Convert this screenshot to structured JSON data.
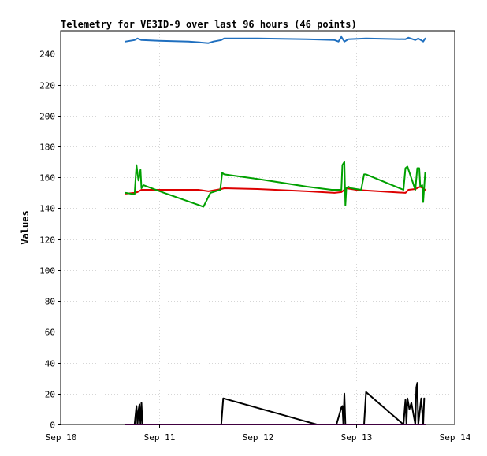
{
  "chart_data": {
    "type": "line",
    "title": "Telemetry for VE3ID-9 over last 96 hours (46 points)",
    "xlabel": "",
    "ylabel": "Values",
    "x_axis": {
      "unit": "days",
      "range": [
        10,
        14
      ],
      "ticks": [
        {
          "value": 10,
          "label": "Sep 10"
        },
        {
          "value": 11,
          "label": "Sep 11"
        },
        {
          "value": 12,
          "label": "Sep 12"
        },
        {
          "value": 13,
          "label": "Sep 13"
        },
        {
          "value": 14,
          "label": "Sep 14"
        }
      ]
    },
    "y_axis": {
      "range": [
        0,
        255
      ],
      "ticks": [
        0,
        20,
        40,
        60,
        80,
        100,
        120,
        140,
        160,
        180,
        200,
        220,
        240
      ]
    },
    "grid": true,
    "legend": "none",
    "series": [
      {
        "color": "#1f6fbf",
        "points": [
          [
            10.66,
            248
          ],
          [
            10.75,
            249
          ],
          [
            10.78,
            250
          ],
          [
            10.82,
            249
          ],
          [
            11.0,
            248.5
          ],
          [
            11.3,
            248
          ],
          [
            11.5,
            247
          ],
          [
            11.55,
            248
          ],
          [
            11.63,
            249
          ],
          [
            11.66,
            250
          ],
          [
            12.0,
            250
          ],
          [
            12.5,
            249.5
          ],
          [
            12.78,
            249
          ],
          [
            12.82,
            248
          ],
          [
            12.85,
            251
          ],
          [
            12.88,
            248
          ],
          [
            12.92,
            249.5
          ],
          [
            13.1,
            250
          ],
          [
            13.5,
            249.5
          ],
          [
            13.53,
            250.5
          ],
          [
            13.6,
            249
          ],
          [
            13.63,
            250
          ],
          [
            13.68,
            248
          ],
          [
            13.7,
            250
          ]
        ]
      },
      {
        "color": "#dd0000",
        "points": [
          [
            10.66,
            149.5
          ],
          [
            10.75,
            150
          ],
          [
            10.78,
            150.5
          ],
          [
            10.82,
            152
          ],
          [
            11.0,
            152
          ],
          [
            11.4,
            152
          ],
          [
            11.5,
            151
          ],
          [
            11.63,
            152.5
          ],
          [
            11.66,
            153
          ],
          [
            12.0,
            152.5
          ],
          [
            12.5,
            151
          ],
          [
            12.78,
            150
          ],
          [
            12.85,
            150.5
          ],
          [
            12.9,
            153
          ],
          [
            13.0,
            152
          ],
          [
            13.1,
            151.5
          ],
          [
            13.5,
            150
          ],
          [
            13.53,
            152
          ],
          [
            13.6,
            152.5
          ],
          [
            13.65,
            154
          ],
          [
            13.7,
            152
          ]
        ]
      },
      {
        "color": "#00a000",
        "points": [
          [
            10.66,
            150
          ],
          [
            10.75,
            149
          ],
          [
            10.77,
            168
          ],
          [
            10.79,
            158
          ],
          [
            10.81,
            165
          ],
          [
            10.82,
            153
          ],
          [
            10.84,
            155
          ],
          [
            11.05,
            150
          ],
          [
            11.45,
            141
          ],
          [
            11.52,
            150
          ],
          [
            11.62,
            152
          ],
          [
            11.64,
            163
          ],
          [
            11.66,
            162
          ],
          [
            12.0,
            159
          ],
          [
            12.5,
            154
          ],
          [
            12.75,
            152
          ],
          [
            12.85,
            152
          ],
          [
            12.86,
            168
          ],
          [
            12.88,
            170
          ],
          [
            12.89,
            142
          ],
          [
            12.9,
            153
          ],
          [
            12.92,
            154
          ],
          [
            12.95,
            153
          ],
          [
            13.05,
            152
          ],
          [
            13.08,
            162
          ],
          [
            13.1,
            162
          ],
          [
            13.48,
            152
          ],
          [
            13.5,
            166
          ],
          [
            13.52,
            167
          ],
          [
            13.6,
            152
          ],
          [
            13.62,
            166
          ],
          [
            13.64,
            166
          ],
          [
            13.65,
            154
          ],
          [
            13.67,
            155
          ],
          [
            13.68,
            144
          ],
          [
            13.7,
            163
          ]
        ]
      },
      {
        "color": "#000000",
        "points": [
          [
            10.66,
            0
          ],
          [
            10.75,
            0
          ],
          [
            10.77,
            12
          ],
          [
            10.78,
            0
          ],
          [
            10.79,
            9
          ],
          [
            10.8,
            13
          ],
          [
            10.81,
            0
          ],
          [
            10.82,
            14
          ],
          [
            10.83,
            0
          ],
          [
            11.0,
            0
          ],
          [
            11.6,
            0
          ],
          [
            11.63,
            0
          ],
          [
            11.65,
            17
          ],
          [
            12.6,
            0
          ],
          [
            12.8,
            0
          ],
          [
            12.85,
            11
          ],
          [
            12.86,
            12
          ],
          [
            12.87,
            0
          ],
          [
            12.88,
            20
          ],
          [
            12.89,
            0
          ],
          [
            13.08,
            0
          ],
          [
            13.1,
            21
          ],
          [
            13.48,
            0
          ],
          [
            13.5,
            16
          ],
          [
            13.51,
            0
          ],
          [
            13.52,
            17
          ],
          [
            13.54,
            10
          ],
          [
            13.56,
            14
          ],
          [
            13.6,
            0
          ],
          [
            13.61,
            24
          ],
          [
            13.62,
            27
          ],
          [
            13.63,
            0
          ],
          [
            13.66,
            17
          ],
          [
            13.68,
            0
          ],
          [
            13.69,
            17
          ]
        ]
      },
      {
        "color": "#800080",
        "points": [
          [
            10.66,
            0
          ],
          [
            13.7,
            0
          ]
        ]
      }
    ]
  }
}
